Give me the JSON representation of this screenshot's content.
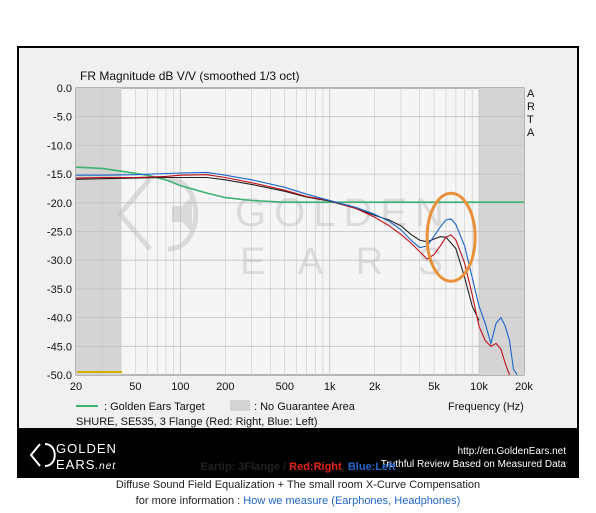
{
  "colors": {
    "frame_bg": "#000000",
    "plot_bg": "#f0f0f0",
    "plot_bg_outer": "#c0c0c0",
    "plot_area": "#f5f5f5",
    "gray_band": "#d4d4d4",
    "grid": "#b0b0b0",
    "target": "#3cb371",
    "red_channel": "#c0101a",
    "blue_channel": "#1a66cc",
    "black_channel": "#222222",
    "highlight": "#e8913a",
    "footer_bg": "#111111",
    "footer_text": "#ffffff",
    "caption_red": "#e3241b",
    "caption_blue": "#2266cc"
  },
  "watermark": {
    "line1": "GOLDEN",
    "line2": "E A R S",
    "icon": "golden-ears-logo-icon"
  },
  "arta_label": [
    "A",
    "R",
    "T",
    "A"
  ],
  "legend": {
    "target_label": ": Golden Ears Target",
    "band_label": ": No Guarantee Area",
    "device_label": "SHURE, SE535, 3 Flange (Red: Right, Blue: Left)"
  },
  "footer": {
    "brand_top": "GOLDEN",
    "brand_bottom": "EARS",
    "brand_suffix": ".net",
    "url": "http://en.GoldenEars.net",
    "tagline": "Truthful Review Based on Measured Data"
  },
  "caption": {
    "line1_prefix": "Eartip: 3Flange / ",
    "line1_red": "Red:Right",
    "line1_sep": ", ",
    "line1_blue": "Blue:Left",
    "line2": "Diffuse Sound Field Equalization + The small room X-Curve Compensation",
    "line3_prefix": "for more information : ",
    "line3_link": "How we measure (Earphones, Headphones)"
  },
  "chart_data": {
    "type": "line",
    "title": "FR Magnitude dB V/V (smoothed 1/3 oct)",
    "xlabel": "Frequency (Hz)",
    "ylabel": "",
    "x_scale": "log",
    "xlim": [
      20,
      20000
    ],
    "ylim": [
      -50,
      0
    ],
    "x_ticks": [
      20,
      50,
      100,
      200,
      500,
      1000,
      2000,
      5000,
      10000,
      20000
    ],
    "x_tick_labels": [
      "20",
      "50",
      "100",
      "200",
      "500",
      "1k",
      "2k",
      "5k",
      "10k",
      "20k"
    ],
    "y_ticks": [
      0,
      -5,
      -10,
      -15,
      -20,
      -25,
      -30,
      -35,
      -40,
      -45,
      -50
    ],
    "y_tick_labels": [
      "0.0",
      "-5.0",
      "-10.0",
      "-15.0",
      "-20.0",
      "-25.0",
      "-30.0",
      "-35.0",
      "-40.0",
      "-45.0",
      "-50.0"
    ],
    "no_guarantee_bands": [
      [
        20,
        40
      ],
      [
        10000,
        20000
      ]
    ],
    "grid": true,
    "series": [
      {
        "name": "Golden Ears Target",
        "color": "#3cb371",
        "points": [
          [
            20,
            -13.8
          ],
          [
            30,
            -14.0
          ],
          [
            40,
            -14.5
          ],
          [
            60,
            -15.2
          ],
          [
            80,
            -16.0
          ],
          [
            100,
            -17.0
          ],
          [
            150,
            -18.3
          ],
          [
            200,
            -19.1
          ],
          [
            300,
            -19.6
          ],
          [
            500,
            -19.9
          ],
          [
            700,
            -19.9
          ],
          [
            1000,
            -19.9
          ],
          [
            2000,
            -19.9
          ],
          [
            5000,
            -19.9
          ],
          [
            10000,
            -19.9
          ],
          [
            20000,
            -19.9
          ]
        ]
      },
      {
        "name": "Red: Right",
        "color": "#c0101a",
        "points": [
          [
            20,
            -15.7
          ],
          [
            30,
            -15.6
          ],
          [
            50,
            -15.6
          ],
          [
            80,
            -15.4
          ],
          [
            100,
            -15.2
          ],
          [
            150,
            -15.1
          ],
          [
            200,
            -15.6
          ],
          [
            300,
            -16.5
          ],
          [
            500,
            -17.8
          ],
          [
            700,
            -18.9
          ],
          [
            1000,
            -19.6
          ],
          [
            1500,
            -21.0
          ],
          [
            2000,
            -22.5
          ],
          [
            2500,
            -24.0
          ],
          [
            3000,
            -25.5
          ],
          [
            3500,
            -27.0
          ],
          [
            4000,
            -28.5
          ],
          [
            4500,
            -29.8
          ],
          [
            5000,
            -29.0
          ],
          [
            5500,
            -27.5
          ],
          [
            6000,
            -26.0
          ],
          [
            6500,
            -25.6
          ],
          [
            7000,
            -26.5
          ],
          [
            8000,
            -30.5
          ],
          [
            9000,
            -36.0
          ],
          [
            10000,
            -41.5
          ],
          [
            11000,
            -44.0
          ],
          [
            12000,
            -45.0
          ],
          [
            13000,
            -44.5
          ],
          [
            14000,
            -45.5
          ],
          [
            15000,
            -48.0
          ],
          [
            16000,
            -50.0
          ]
        ]
      },
      {
        "name": "Blue: Left",
        "color": "#1a66cc",
        "points": [
          [
            20,
            -15.2
          ],
          [
            30,
            -15.2
          ],
          [
            50,
            -15.1
          ],
          [
            80,
            -14.9
          ],
          [
            100,
            -14.8
          ],
          [
            150,
            -14.7
          ],
          [
            200,
            -15.2
          ],
          [
            300,
            -16.0
          ],
          [
            500,
            -17.3
          ],
          [
            700,
            -18.5
          ],
          [
            1000,
            -19.6
          ],
          [
            1500,
            -20.8
          ],
          [
            2000,
            -22.0
          ],
          [
            2500,
            -23.2
          ],
          [
            3000,
            -24.7
          ],
          [
            3500,
            -26.5
          ],
          [
            4000,
            -27.8
          ],
          [
            4500,
            -27.5
          ],
          [
            5000,
            -25.8
          ],
          [
            5500,
            -24.2
          ],
          [
            6000,
            -23.0
          ],
          [
            6500,
            -22.8
          ],
          [
            7000,
            -23.8
          ],
          [
            8000,
            -27.5
          ],
          [
            9000,
            -33.0
          ],
          [
            10000,
            -38.0
          ],
          [
            11000,
            -41.0
          ],
          [
            12000,
            -44.5
          ],
          [
            13000,
            -41.0
          ],
          [
            14000,
            -40.0
          ],
          [
            15000,
            -41.5
          ],
          [
            16000,
            -44.0
          ],
          [
            17000,
            -49.0
          ],
          [
            18000,
            -50.0
          ]
        ]
      },
      {
        "name": "",
        "color": "#222222",
        "points": [
          [
            20,
            -15.9
          ],
          [
            30,
            -15.8
          ],
          [
            50,
            -15.7
          ],
          [
            80,
            -15.6
          ],
          [
            100,
            -15.6
          ],
          [
            150,
            -15.6
          ],
          [
            200,
            -16.0
          ],
          [
            300,
            -16.8
          ],
          [
            500,
            -18.0
          ],
          [
            700,
            -19.0
          ],
          [
            1000,
            -19.7
          ],
          [
            1500,
            -21.0
          ],
          [
            2000,
            -22.2
          ],
          [
            2500,
            -23.0
          ],
          [
            3000,
            -24.0
          ],
          [
            3500,
            -25.5
          ],
          [
            4000,
            -26.5
          ],
          [
            4500,
            -26.8
          ],
          [
            5000,
            -26.3
          ],
          [
            5500,
            -25.9
          ],
          [
            6000,
            -26.0
          ],
          [
            7000,
            -28.0
          ],
          [
            8000,
            -33.0
          ],
          [
            9000,
            -38.0
          ],
          [
            10000,
            -40.5
          ]
        ]
      }
    ],
    "annotations": [
      {
        "type": "ellipse-highlight",
        "freq_center": 6500,
        "db_center": -26,
        "color": "#e8913a"
      }
    ]
  }
}
